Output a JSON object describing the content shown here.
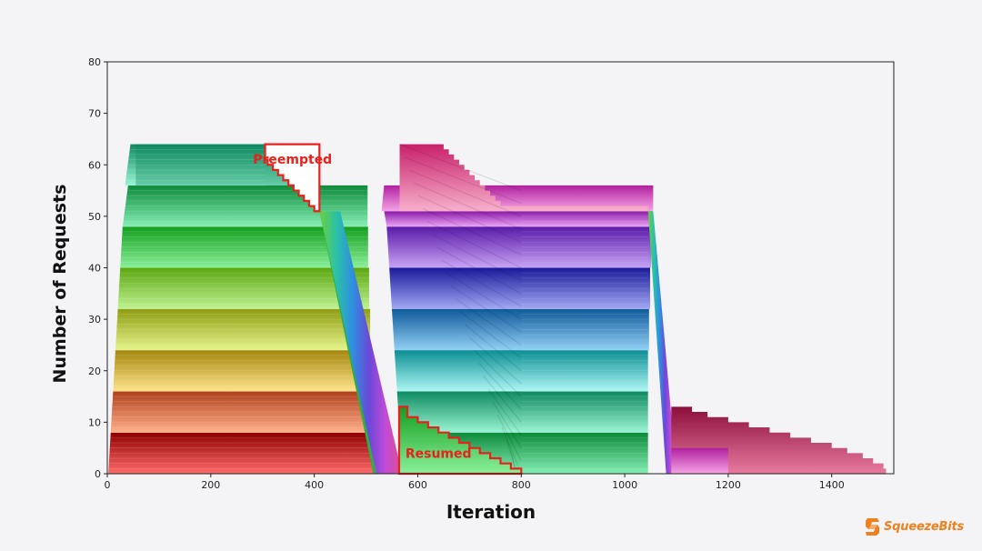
{
  "chart_data": {
    "type": "area",
    "xlabel": "Iteration",
    "ylabel": "Number of Requests",
    "xlim": [
      0,
      1520
    ],
    "ylim": [
      0,
      80
    ],
    "x_ticks": [
      0,
      200,
      400,
      600,
      800,
      1000,
      1200,
      1400
    ],
    "y_ticks": [
      0,
      10,
      20,
      30,
      40,
      50,
      60,
      70,
      80
    ],
    "grid": false,
    "series": [
      {
        "values": [
          [
            0,
            0
          ],
          [
            5,
            0
          ],
          [
            510,
            0
          ],
          [
            520,
            0
          ]
        ],
        "top": [
          [
            0,
            8
          ],
          [
            5,
            8
          ],
          [
            510,
            8
          ],
          [
            516,
            0
          ]
        ]
      }
    ],
    "requests_timeline": [
      {
        "x": [
          0,
          4,
          8,
          12,
          16,
          22,
          24,
          32,
          40,
          48,
          56,
          64
        ],
        "y": [
          0,
          8,
          16,
          24,
          32,
          40,
          40,
          48,
          48,
          56,
          56,
          64
        ]
      },
      {
        "x": [
          305,
          315,
          325,
          335,
          345,
          355,
          365,
          375,
          385,
          395,
          405,
          410
        ],
        "y": [
          64,
          63,
          62,
          61,
          60,
          59,
          58,
          57,
          56,
          55,
          54,
          51
        ]
      },
      {
        "x": [
          410,
          420,
          430,
          440,
          450,
          460,
          470,
          480,
          490,
          500,
          510,
          520
        ],
        "y": [
          51,
          47,
          43,
          39,
          35,
          31,
          27,
          23,
          19,
          15,
          11,
          0
        ]
      },
      {
        "x": [
          564,
          580,
          600,
          620,
          640,
          660,
          680,
          700,
          720,
          740,
          760,
          780,
          800
        ],
        "y": [
          13,
          12,
          11,
          10,
          9,
          8,
          7,
          6,
          5,
          4,
          3,
          2,
          0
        ]
      },
      {
        "x": [
          1045,
          1060,
          1080,
          1100,
          1200,
          1300,
          1400,
          1500
        ],
        "y": [
          51,
          40,
          20,
          13,
          11,
          8,
          5,
          1
        ]
      }
    ],
    "annotations": [
      {
        "text": "Preempted"
      },
      {
        "text": "Resumed"
      }
    ],
    "bands": {
      "green_section": {
        "x_start": [
          3,
          13,
          23,
          33,
          43,
          55,
          65,
          75
        ],
        "x_end": [
          410,
          410,
          410,
          410,
          410,
          410,
          410,
          410
        ]
      },
      "preempted_triangle": {
        "x": [
          305,
          410
        ],
        "y": [
          51,
          64
        ]
      },
      "resumed_region": {
        "x": [
          564,
          800
        ],
        "y": [
          0,
          13
        ]
      },
      "purple_peak": {
        "x": [
          565,
          640
        ],
        "y": [
          64
        ]
      },
      "tail": {
        "x": [
          1100,
          1500
        ],
        "y": [
          13,
          1
        ]
      }
    },
    "colors": {
      "b0": "#c00000",
      "b1": "#e0502a",
      "b2": "#e88f3a",
      "b3": "#c9a21f",
      "b4": "#a9c72b",
      "b5": "#6ccf39",
      "b6": "#3cc94a",
      "b7": "#26b36a",
      "mid1": "#2e9ec9",
      "mid2": "#3a63c9",
      "mid3": "#6b3cc9",
      "mid4": "#b03cc9",
      "mid5": "#d85ad8",
      "mid6": "#e45fa0",
      "tail": "#c0305e",
      "annotation": "#e8211c"
    }
  },
  "branding": {
    "text": "SqueezeBits",
    "icon": "squeezebits-logo-icon"
  }
}
